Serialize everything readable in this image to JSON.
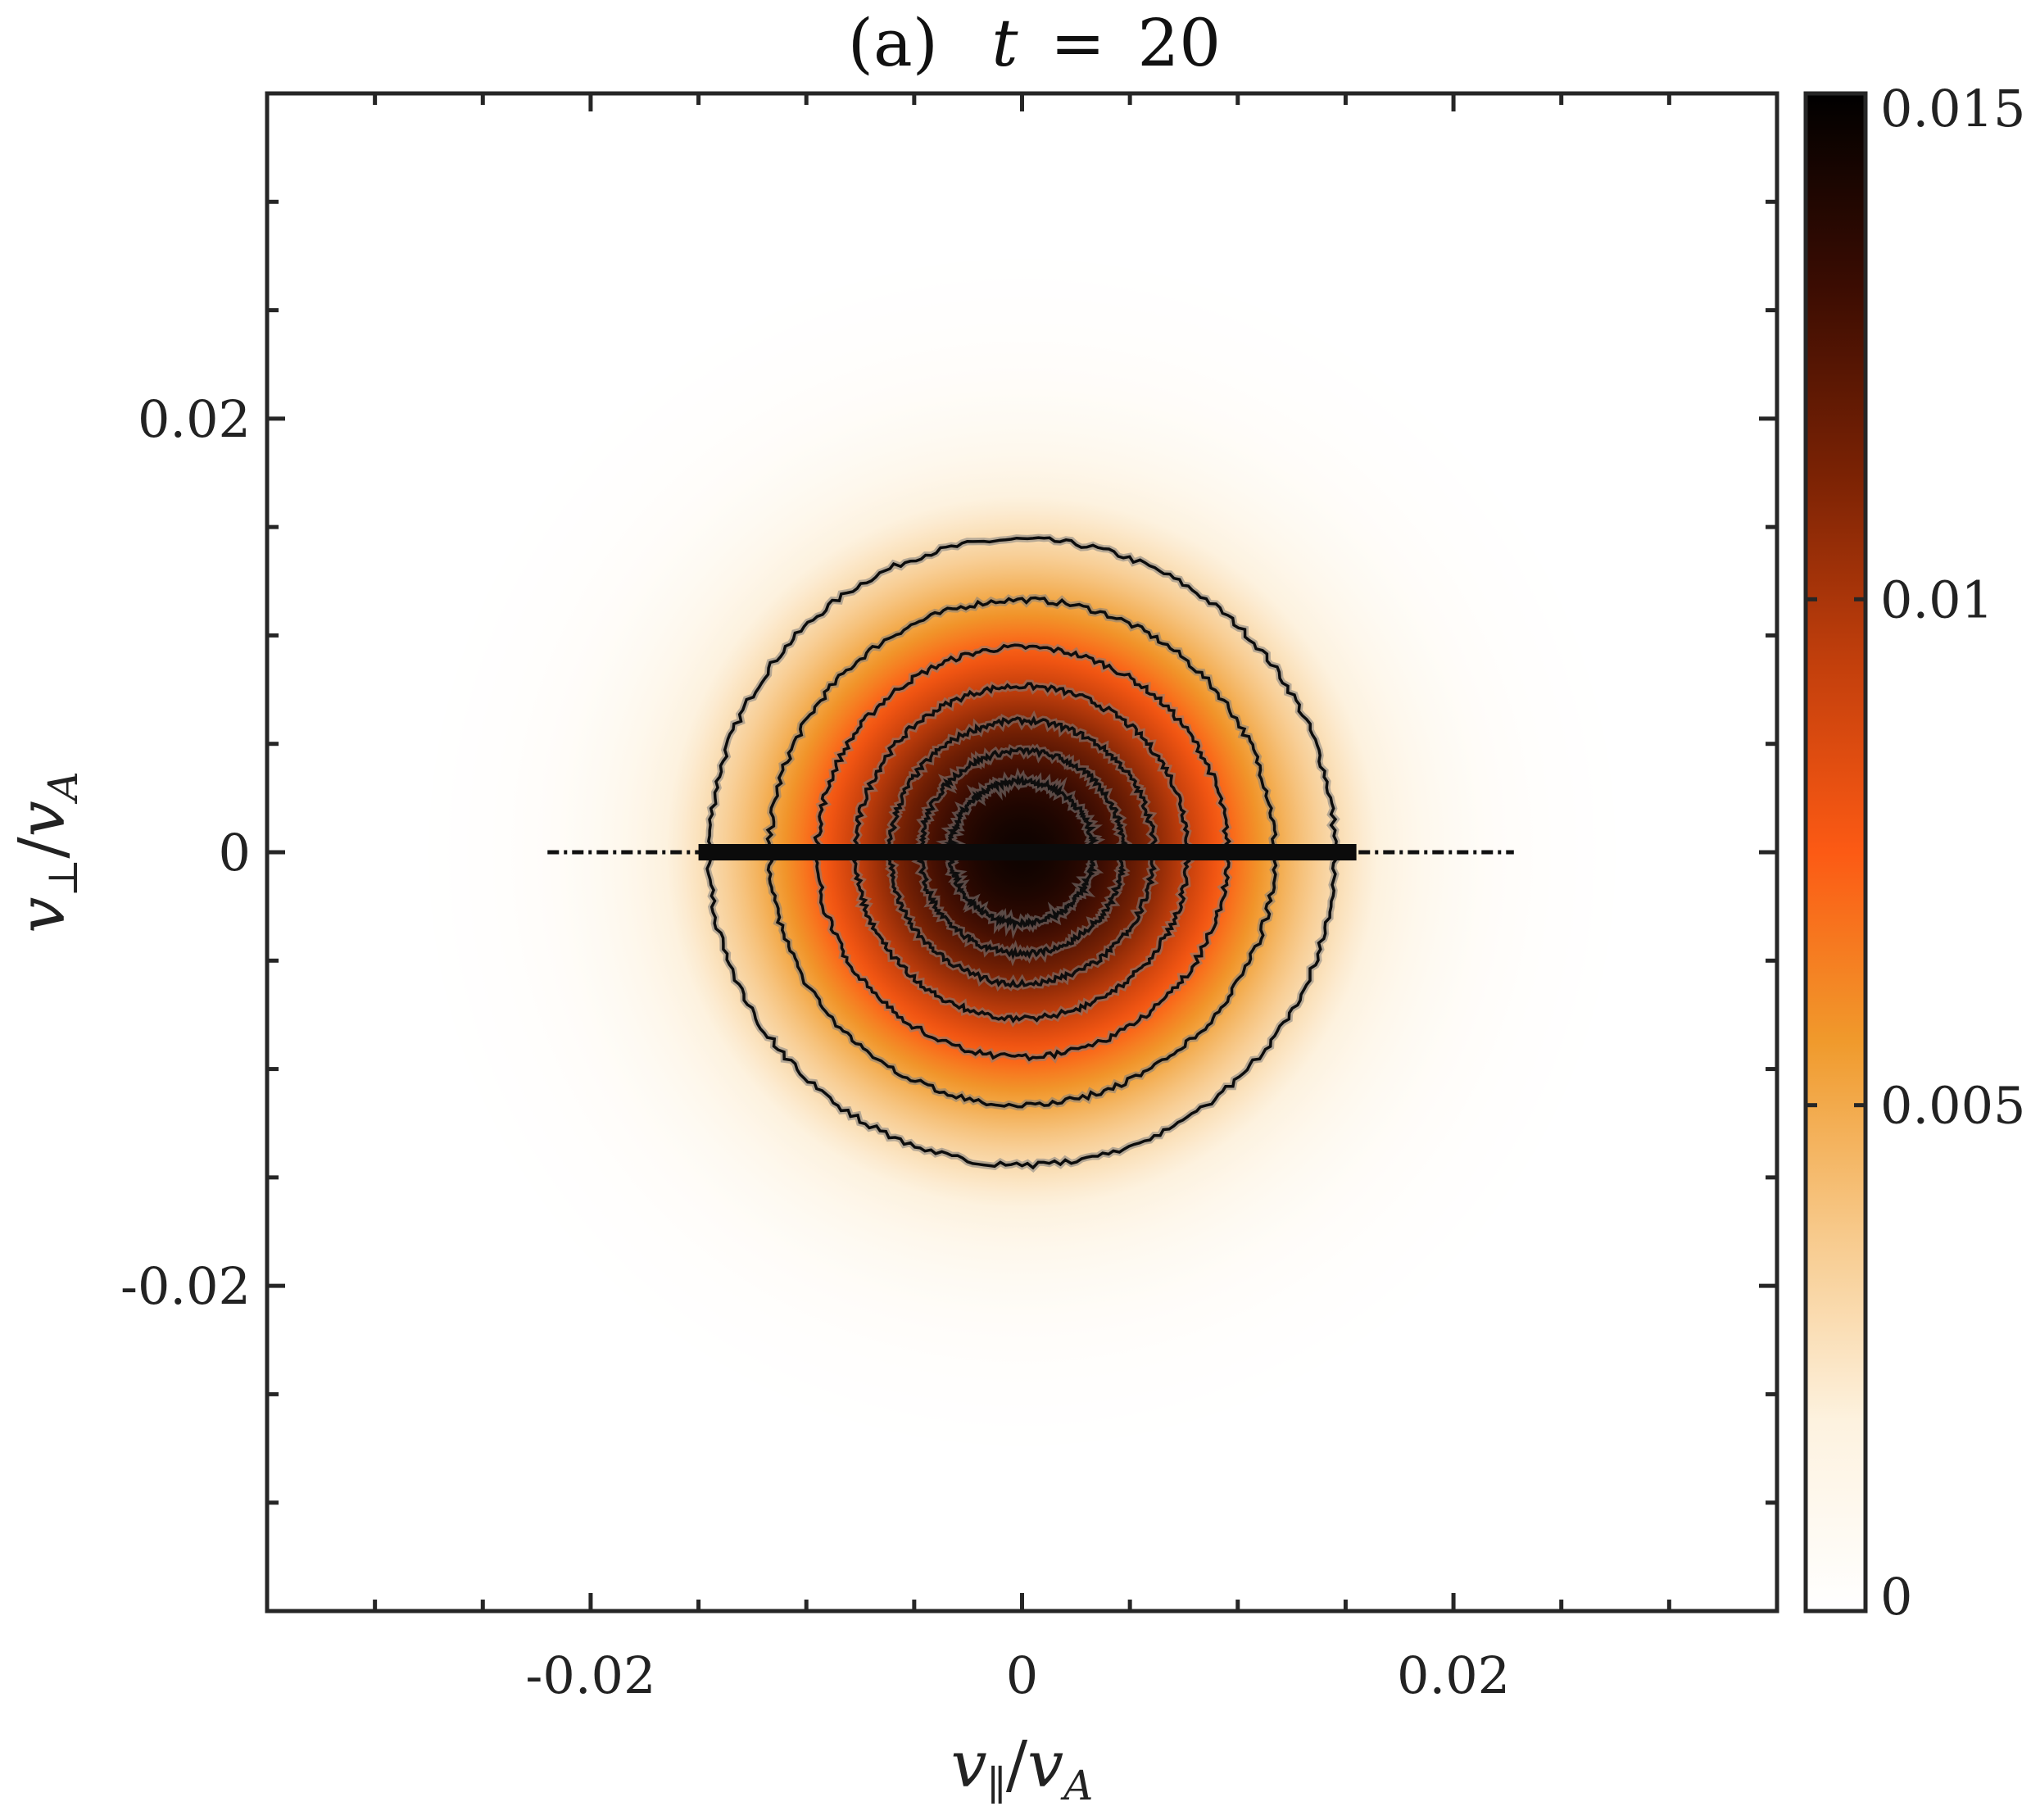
{
  "chart_data": {
    "type": "heatmap",
    "title": {
      "panel": "(a)",
      "variable": "t",
      "operator": "=",
      "value": "20"
    },
    "xlabel": {
      "main": "v",
      "sub": "∥",
      "slash": "/",
      "denom": "v",
      "denom_sub": "A"
    },
    "ylabel": {
      "main": "v",
      "sub": "⊥",
      "slash": "/",
      "denom": "v",
      "denom_sub": "A"
    },
    "xlim": [
      -0.035,
      0.035
    ],
    "ylim": [
      -0.035,
      0.035
    ],
    "x_ticks": [
      {
        "value": -0.02,
        "label": "-0.02"
      },
      {
        "value": 0,
        "label": "0"
      },
      {
        "value": 0.02,
        "label": "0.02"
      }
    ],
    "y_ticks": [
      {
        "value": 0.02,
        "label": "0.02"
      },
      {
        "value": 0,
        "label": "0"
      },
      {
        "value": -0.02,
        "label": "-0.02"
      }
    ],
    "minor_tick_step": 0.005,
    "colorbar": {
      "min": 0,
      "max": 0.015,
      "ticks": [
        {
          "value": 0,
          "label": "0"
        },
        {
          "value": 0.005,
          "label": "0.005"
        },
        {
          "value": 0.01,
          "label": "0.01"
        },
        {
          "value": 0.015,
          "label": "0.015"
        }
      ],
      "colors": [
        "#ffffff",
        "#fdf2df",
        "#f7c98a",
        "#f09a2c",
        "#fc5a14",
        "#c23f0c",
        "#7a2204",
        "#3a0c02",
        "#000000"
      ]
    },
    "distribution": {
      "center": [
        0.0,
        0.0
      ],
      "peak_value": 0.0145,
      "thermal_spread": 0.0115,
      "contour_levels": [
        0.002,
        0.0045,
        0.0065,
        0.0085,
        0.0105,
        0.012,
        0.0133
      ],
      "contour_radii": [
        0.0145,
        0.0117,
        0.0095,
        0.0077,
        0.0061,
        0.0047,
        0.0033
      ],
      "beam_line": {
        "y": 0,
        "x_range": [
          -0.022,
          0.0228
        ]
      }
    },
    "grid": false
  }
}
